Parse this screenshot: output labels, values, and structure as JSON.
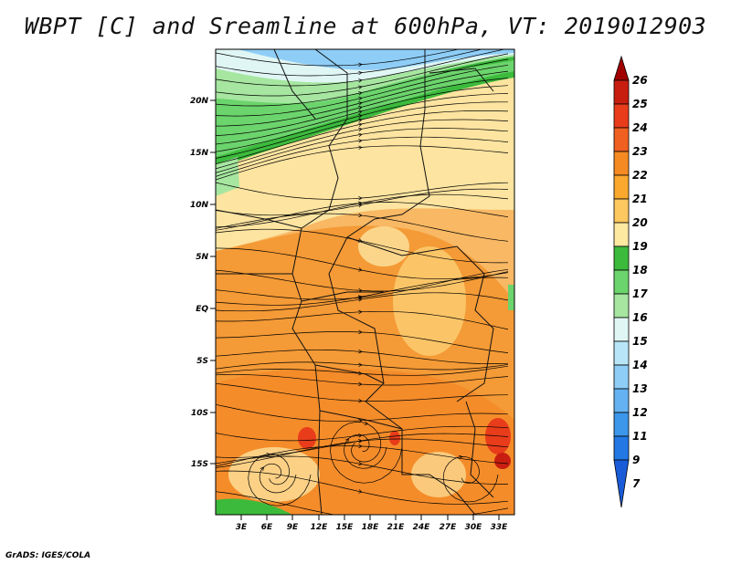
{
  "title": "WBPT [C] and Sreamline at 600hPa, VT: 2019012903",
  "credit": "GrADS: IGES/COLA",
  "map": {
    "lat_labels": [
      "20N",
      "15N",
      "10N",
      "5N",
      "EQ",
      "5S",
      "10S",
      "15S"
    ],
    "lon_labels": [
      "3E",
      "6E",
      "9E",
      "12E",
      "15E",
      "18E",
      "21E",
      "24E",
      "27E",
      "30E",
      "33E"
    ]
  },
  "colorbar": {
    "levels": [
      "26",
      "25",
      "24",
      "23",
      "22",
      "21",
      "20",
      "19",
      "18",
      "17",
      "16",
      "15",
      "14",
      "13",
      "12",
      "11",
      "9",
      "7"
    ],
    "colors": [
      "#a00000",
      "#c81e10",
      "#e83c1a",
      "#f06020",
      "#f58a22",
      "#faa82e",
      "#fdc860",
      "#fde9a0",
      "#3cba3c",
      "#6cd46c",
      "#a6e6a0",
      "#e0f6f4",
      "#b8e6f8",
      "#8ecdf6",
      "#64b2f2",
      "#3c96ea",
      "#2378e4",
      "#1a5cd8"
    ]
  }
}
